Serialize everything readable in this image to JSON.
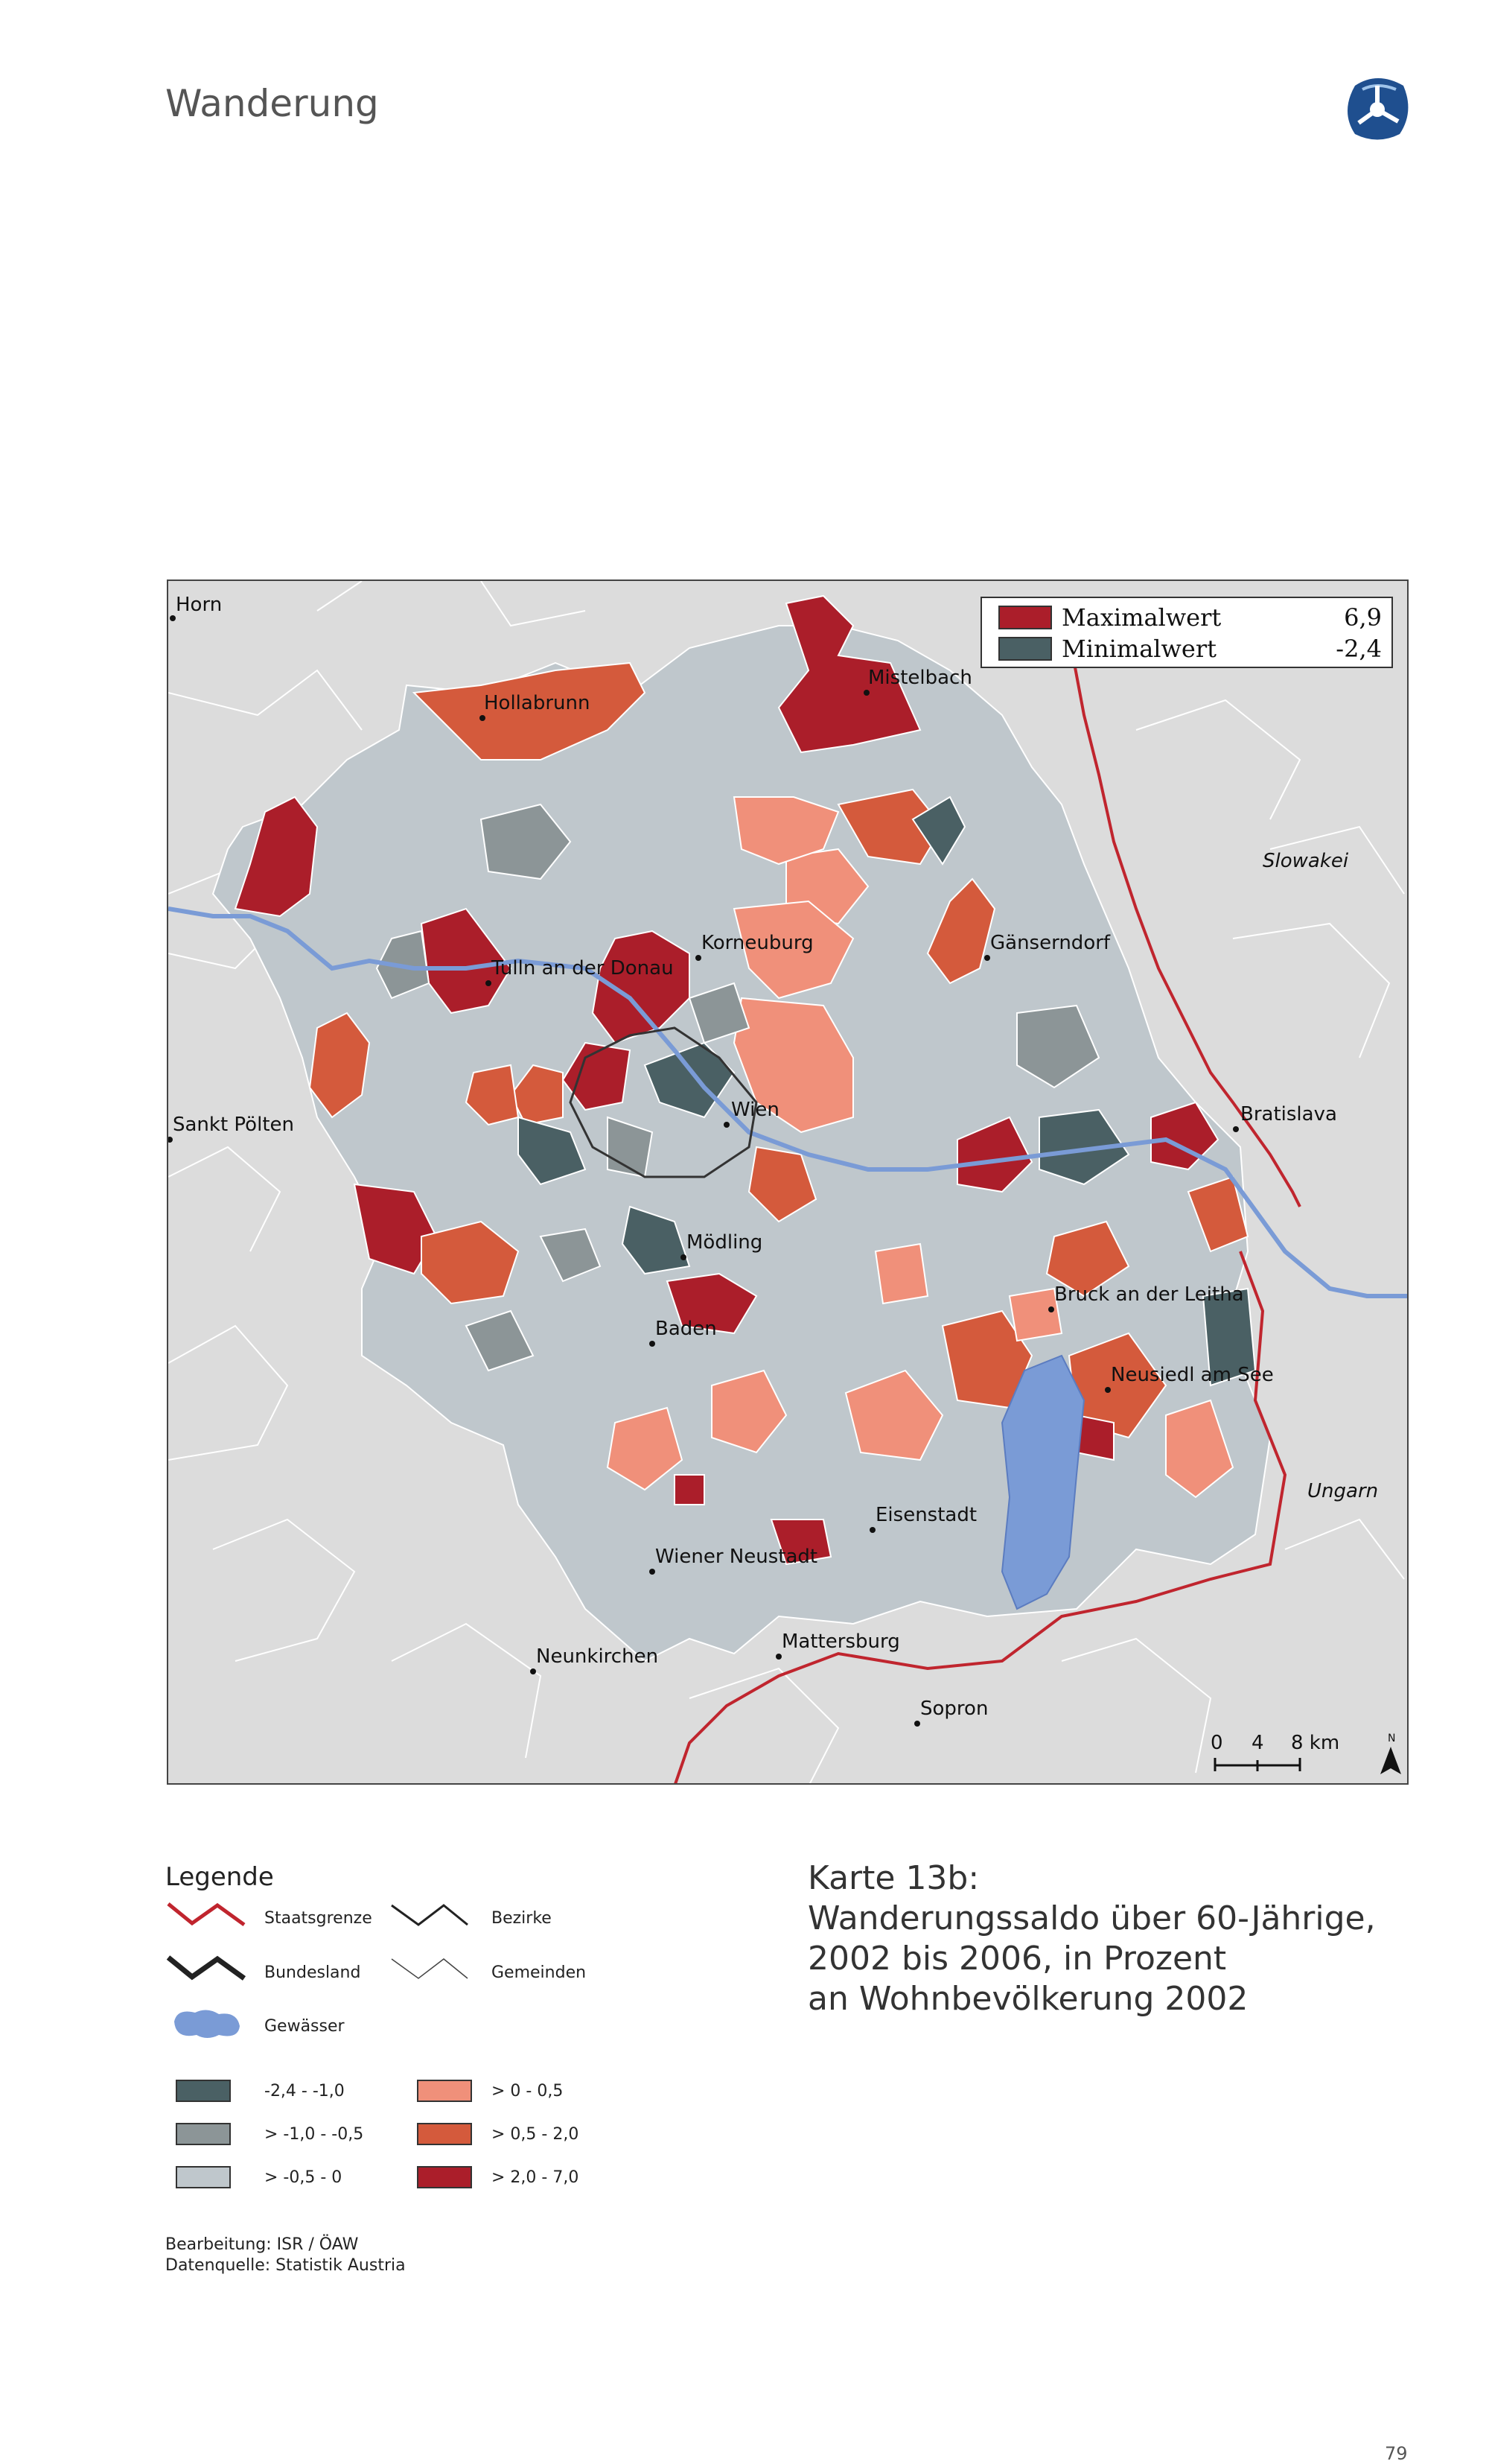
{
  "header": {
    "section_title": "Wanderung"
  },
  "map": {
    "cities": [
      {
        "name": "Horn"
      },
      {
        "name": "Hollabrunn"
      },
      {
        "name": "Mistelbach"
      },
      {
        "name": "Slowakei"
      },
      {
        "name": "Korneuburg"
      },
      {
        "name": "Gänserndorf"
      },
      {
        "name": "Tulln an der Donau"
      },
      {
        "name": "Sankt Pölten"
      },
      {
        "name": "Wien"
      },
      {
        "name": "Bratislava"
      },
      {
        "name": "Mödling"
      },
      {
        "name": "Bruck an der Leitha"
      },
      {
        "name": "Baden"
      },
      {
        "name": "Neusiedl am See"
      },
      {
        "name": "Ungarn"
      },
      {
        "name": "Eisenstadt"
      },
      {
        "name": "Wiener Neustadt"
      },
      {
        "name": "Mattersburg"
      },
      {
        "name": "Neunkirchen"
      },
      {
        "name": "Sopron"
      }
    ],
    "extremes": {
      "max_label": "Maximalwert",
      "max_value": "6,9",
      "min_label": "Minimalwert",
      "min_value": "-2,4"
    },
    "scale": {
      "t0": "0",
      "t1": "4",
      "t2": "8 km"
    },
    "north": "N",
    "colors": {
      "class1": "#4a6064",
      "class2": "#8c9597",
      "class3": "#bfc7cc",
      "class4": "#f0907a",
      "class5": "#d45a3c",
      "class6": "#ab1e2a",
      "water": "#7a9bd6",
      "border": "#c0252e",
      "background": "#dcdcdc"
    }
  },
  "legend": {
    "title": "Legende",
    "lines": [
      {
        "label": "Staatsgrenze"
      },
      {
        "label": "Bezirke"
      },
      {
        "label": "Bundesland"
      },
      {
        "label": "Gemeinden"
      },
      {
        "label": "Gewässer"
      }
    ],
    "classes": [
      {
        "label": "-2,4 -  -1,0",
        "color": "#4a6064"
      },
      {
        "label": "> -1,0 -  -0,5",
        "color": "#8c9597"
      },
      {
        "label": "> -0,5 - 0",
        "color": "#bfc7cc"
      },
      {
        "label": "> 0 - 0,5",
        "color": "#f0907a"
      },
      {
        "label": "> 0,5 - 2,0",
        "color": "#d45a3c"
      },
      {
        "label": "> 2,0 - 7,0",
        "color": "#ab1e2a"
      }
    ]
  },
  "caption": {
    "line1": "Karte 13b:",
    "line2": "Wanderungssaldo über 60-Jährige,",
    "line3": "2002 bis 2006, in Prozent",
    "line4": "an Wohnbevölkerung 2002"
  },
  "credits": {
    "line1": "Bearbeitung: ISR / ÖAW",
    "line2": "Datenquelle: Statistik Austria"
  },
  "footer": {
    "page_number": "79"
  }
}
